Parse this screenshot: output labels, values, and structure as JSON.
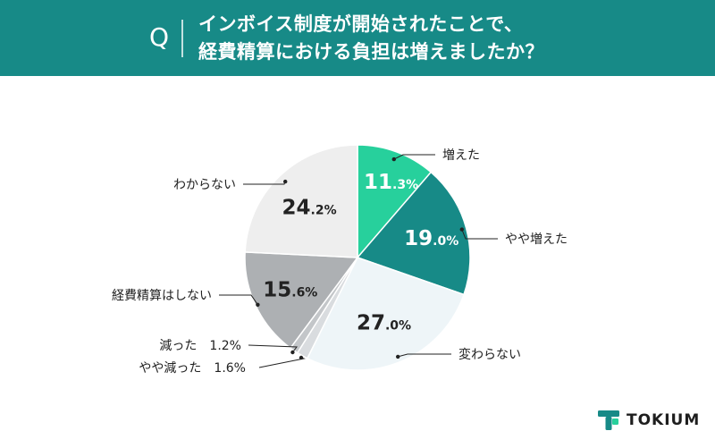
{
  "header": {
    "q_letter": "Q",
    "title_line1": "インボイス制度が開始されたことで、",
    "title_line2": "経費精算における負担は増えましたか？",
    "background": "#178a87"
  },
  "chart_data": {
    "type": "pie",
    "unit": "%",
    "start_angle_deg": 0,
    "direction": "clockwise",
    "slices": [
      {
        "label": "増えた",
        "value": 11.3,
        "display_int": "11",
        "display_dec": ".3%",
        "color": "#27d09c",
        "text_color": "#ffffff",
        "label_inside": true
      },
      {
        "label": "やや増えた",
        "value": 19.0,
        "display_int": "19",
        "display_dec": ".0%",
        "color": "#178a87",
        "text_color": "#ffffff",
        "label_inside": true
      },
      {
        "label": "変わらない",
        "value": 27.0,
        "display_int": "27",
        "display_dec": ".0%",
        "color": "#eef5f8",
        "text_color": "#222222",
        "label_inside": true
      },
      {
        "label": "やや減った",
        "value": 1.6,
        "display_outside": "1.6%",
        "color": "#d9dcdf",
        "text_color": "#222222",
        "label_inside": false
      },
      {
        "label": "減った",
        "value": 1.2,
        "display_outside": "1.2%",
        "color": "#c3c6c9",
        "text_color": "#222222",
        "label_inside": false
      },
      {
        "label": "経費精算はしない",
        "value": 15.6,
        "display_int": "15",
        "display_dec": ".6%",
        "color": "#adb0b3",
        "text_color": "#222222",
        "label_inside": true
      },
      {
        "label": "わからない",
        "value": 24.2,
        "display_int": "24",
        "display_dec": ".2%",
        "color": "#eeeeee",
        "text_color": "#222222",
        "label_inside": true
      }
    ]
  },
  "logo": {
    "text": "TOKIUM",
    "mark_color": "#178a87",
    "mark_accent": "#27d09c"
  }
}
